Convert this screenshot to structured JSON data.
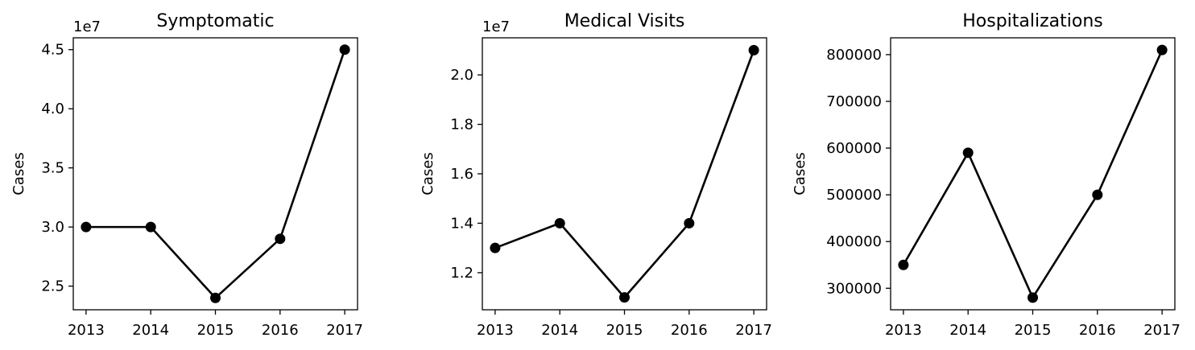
{
  "chart_data": [
    {
      "type": "line",
      "title": "Symptomatic",
      "ylabel": "Cases",
      "xlabel": "",
      "x": [
        "2013",
        "2014",
        "2015",
        "2016",
        "2017"
      ],
      "values": [
        30000000,
        30000000,
        24000000,
        29000000,
        45000000
      ],
      "ylim": [
        23000000,
        46000000
      ],
      "yticks": [
        25000000,
        30000000,
        35000000,
        40000000,
        45000000
      ],
      "ytick_labels": [
        "2.5",
        "3.0",
        "3.5",
        "4.0",
        "4.5"
      ],
      "offset_text": "1e7",
      "color": "#000000",
      "marker": "circle"
    },
    {
      "type": "line",
      "title": "Medical Visits",
      "ylabel": "Cases",
      "xlabel": "",
      "x": [
        "2013",
        "2014",
        "2015",
        "2016",
        "2017"
      ],
      "values": [
        13000000,
        14000000,
        11000000,
        14000000,
        21000000
      ],
      "ylim": [
        10500000,
        21500000
      ],
      "yticks": [
        12000000,
        14000000,
        16000000,
        18000000,
        20000000
      ],
      "ytick_labels": [
        "1.2",
        "1.4",
        "1.6",
        "1.8",
        "2.0"
      ],
      "offset_text": "1e7",
      "color": "#000000",
      "marker": "circle"
    },
    {
      "type": "line",
      "title": "Hospitalizations",
      "ylabel": "Cases",
      "xlabel": "",
      "x": [
        "2013",
        "2014",
        "2015",
        "2016",
        "2017"
      ],
      "values": [
        350000,
        590000,
        280000,
        500000,
        810000
      ],
      "ylim": [
        254000,
        836000
      ],
      "yticks": [
        300000,
        400000,
        500000,
        600000,
        700000,
        800000
      ],
      "ytick_labels": [
        "300000",
        "400000",
        "500000",
        "600000",
        "700000",
        "800000"
      ],
      "offset_text": "",
      "color": "#000000",
      "marker": "circle"
    }
  ]
}
